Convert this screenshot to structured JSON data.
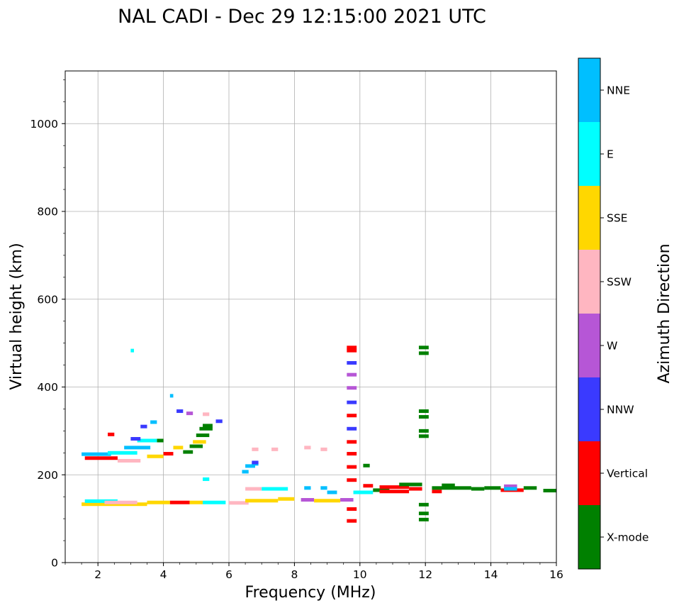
{
  "chart_data": {
    "type": "scatter",
    "title": "NAL CADI - Dec 29 12:15:00 2021 UTC",
    "xlabel": "Frequency (MHz)",
    "ylabel": "Virtual height (km)",
    "colorbar_label": "Azimuth Direction",
    "xlim": [
      1,
      16
    ],
    "ylim": [
      0,
      1120
    ],
    "x_ticks": [
      "2",
      "4",
      "6",
      "8",
      "10",
      "12",
      "14",
      "16"
    ],
    "y_ticks": [
      "0",
      "200",
      "400",
      "600",
      "800",
      "1000"
    ],
    "grid": true,
    "legend_position": "right-colorbar",
    "categories": [
      {
        "label": "X-mode",
        "color": "#008000"
      },
      {
        "label": "Vertical",
        "color": "#ff0000"
      },
      {
        "label": "NNW",
        "color": "#3a3aff"
      },
      {
        "label": "W",
        "color": "#b656d6"
      },
      {
        "label": "SSW",
        "color": "#ffb6c1"
      },
      {
        "label": "SSE",
        "color": "#ffd700"
      },
      {
        "label": "E",
        "color": "#00ffff"
      },
      {
        "label": "NNE",
        "color": "#00bfff"
      }
    ],
    "echo_segments": [
      {
        "f0": 1.5,
        "f1": 3.5,
        "h": 133,
        "dir": "SSE"
      },
      {
        "f0": 1.6,
        "f1": 2.6,
        "h": 140,
        "dir": "E"
      },
      {
        "f0": 2.2,
        "f1": 3.2,
        "h": 137,
        "dir": "SSW"
      },
      {
        "f0": 3.5,
        "f1": 4.2,
        "h": 137,
        "dir": "SSE"
      },
      {
        "f0": 4.2,
        "f1": 4.8,
        "h": 137,
        "dir": "Vertical"
      },
      {
        "f0": 4.8,
        "f1": 5.2,
        "h": 137,
        "dir": "SSE"
      },
      {
        "f0": 5.2,
        "f1": 5.9,
        "h": 137,
        "dir": "E"
      },
      {
        "f0": 6.0,
        "f1": 6.6,
        "h": 136,
        "dir": "SSW"
      },
      {
        "f0": 6.5,
        "f1": 7.5,
        "h": 141,
        "dir": "SSE"
      },
      {
        "f0": 7.5,
        "f1": 8.0,
        "h": 145,
        "dir": "SSE"
      },
      {
        "f0": 8.2,
        "f1": 8.6,
        "h": 143,
        "dir": "W"
      },
      {
        "f0": 8.6,
        "f1": 9.4,
        "h": 141,
        "dir": "SSE"
      },
      {
        "f0": 9.4,
        "f1": 9.8,
        "h": 143,
        "dir": "W"
      },
      {
        "f0": 6.5,
        "f1": 7.0,
        "h": 168,
        "dir": "SSW"
      },
      {
        "f0": 7.0,
        "f1": 7.8,
        "h": 168,
        "dir": "E"
      },
      {
        "f0": 8.3,
        "f1": 8.5,
        "h": 170,
        "dir": "NNE"
      },
      {
        "f0": 8.8,
        "f1": 9.0,
        "h": 170,
        "dir": "NNE"
      },
      {
        "f0": 9.0,
        "f1": 9.3,
        "h": 160,
        "dir": "NNE"
      },
      {
        "f0": 9.8,
        "f1": 10.4,
        "h": 160,
        "dir": "E"
      },
      {
        "f0": 10.4,
        "f1": 10.9,
        "h": 165,
        "dir": "X-mode"
      },
      {
        "f0": 10.1,
        "f1": 10.4,
        "h": 175,
        "dir": "Vertical"
      },
      {
        "f0": 10.6,
        "f1": 11.5,
        "h": 162,
        "dir": "Vertical"
      },
      {
        "f0": 10.6,
        "f1": 11.5,
        "h": 172,
        "dir": "Vertical"
      },
      {
        "f0": 11.5,
        "f1": 11.9,
        "h": 168,
        "dir": "Vertical"
      },
      {
        "f0": 11.2,
        "f1": 11.9,
        "h": 178,
        "dir": "X-mode"
      },
      {
        "f0": 12.2,
        "f1": 12.5,
        "h": 162,
        "dir": "Vertical"
      },
      {
        "f0": 12.2,
        "f1": 13.4,
        "h": 170,
        "dir": "X-mode"
      },
      {
        "f0": 12.5,
        "f1": 12.9,
        "h": 176,
        "dir": "X-mode"
      },
      {
        "f0": 13.4,
        "f1": 13.8,
        "h": 168,
        "dir": "X-mode"
      },
      {
        "f0": 13.8,
        "f1": 14.3,
        "h": 170,
        "dir": "X-mode"
      },
      {
        "f0": 14.3,
        "f1": 15.0,
        "h": 165,
        "dir": "Vertical"
      },
      {
        "f0": 14.4,
        "f1": 14.8,
        "h": 174,
        "dir": "W"
      },
      {
        "f0": 14.4,
        "f1": 14.8,
        "h": 168,
        "dir": "NNE"
      },
      {
        "f0": 15.0,
        "f1": 15.4,
        "h": 170,
        "dir": "X-mode"
      },
      {
        "f0": 15.6,
        "f1": 16.0,
        "h": 164,
        "dir": "X-mode"
      },
      {
        "f0": 10.1,
        "f1": 10.3,
        "h": 221,
        "dir": "X-mode"
      },
      {
        "f0": 6.4,
        "f1": 6.6,
        "h": 207,
        "dir": "NNE"
      },
      {
        "f0": 6.5,
        "f1": 6.8,
        "h": 220,
        "dir": "NNE"
      },
      {
        "f0": 6.7,
        "f1": 6.9,
        "h": 225,
        "dir": "NNE"
      },
      {
        "f0": 6.7,
        "f1": 6.9,
        "h": 228,
        "dir": "NNW"
      },
      {
        "f0": 6.7,
        "f1": 6.9,
        "h": 258,
        "dir": "SSW"
      },
      {
        "f0": 7.3,
        "f1": 7.5,
        "h": 258,
        "dir": "SSW"
      },
      {
        "f0": 8.3,
        "f1": 8.5,
        "h": 262,
        "dir": "SSW"
      },
      {
        "f0": 8.8,
        "f1": 9.0,
        "h": 258,
        "dir": "SSW"
      },
      {
        "f0": 5.2,
        "f1": 5.4,
        "h": 190,
        "dir": "E"
      },
      {
        "f0": 4.0,
        "f1": 4.3,
        "h": 248,
        "dir": "Vertical"
      },
      {
        "f0": 4.3,
        "f1": 4.6,
        "h": 262,
        "dir": "SSE"
      },
      {
        "f0": 4.6,
        "f1": 4.9,
        "h": 252,
        "dir": "X-mode"
      },
      {
        "f0": 4.8,
        "f1": 5.2,
        "h": 265,
        "dir": "X-mode"
      },
      {
        "f0": 4.9,
        "f1": 5.3,
        "h": 275,
        "dir": "SSE"
      },
      {
        "f0": 5.0,
        "f1": 5.4,
        "h": 290,
        "dir": "X-mode"
      },
      {
        "f0": 5.1,
        "f1": 5.5,
        "h": 305,
        "dir": "X-mode"
      },
      {
        "f0": 5.2,
        "f1": 5.5,
        "h": 312,
        "dir": "X-mode"
      },
      {
        "f0": 5.2,
        "f1": 5.4,
        "h": 338,
        "dir": "SSW"
      },
      {
        "f0": 5.6,
        "f1": 5.8,
        "h": 322,
        "dir": "NNW"
      },
      {
        "f0": 4.7,
        "f1": 4.9,
        "h": 340,
        "dir": "W"
      },
      {
        "f0": 4.4,
        "f1": 4.6,
        "h": 345,
        "dir": "NNW"
      },
      {
        "f0": 4.2,
        "f1": 4.3,
        "h": 380,
        "dir": "NNE"
      },
      {
        "f0": 3.8,
        "f1": 4.0,
        "h": 278,
        "dir": "X-mode"
      },
      {
        "f0": 1.5,
        "f1": 2.4,
        "h": 247,
        "dir": "NNE"
      },
      {
        "f0": 1.6,
        "f1": 2.6,
        "h": 238,
        "dir": "Vertical"
      },
      {
        "f0": 2.3,
        "f1": 3.2,
        "h": 250,
        "dir": "E"
      },
      {
        "f0": 2.8,
        "f1": 3.6,
        "h": 262,
        "dir": "NNE"
      },
      {
        "f0": 3.2,
        "f1": 3.8,
        "h": 278,
        "dir": "E"
      },
      {
        "f0": 2.6,
        "f1": 3.3,
        "h": 232,
        "dir": "SSW"
      },
      {
        "f0": 3.5,
        "f1": 4.0,
        "h": 242,
        "dir": "SSE"
      },
      {
        "f0": 3.0,
        "f1": 3.3,
        "h": 282,
        "dir": "NNW"
      },
      {
        "f0": 2.3,
        "f1": 2.5,
        "h": 292,
        "dir": "Vertical"
      },
      {
        "f0": 3.3,
        "f1": 3.5,
        "h": 310,
        "dir": "NNW"
      },
      {
        "f0": 3.6,
        "f1": 3.8,
        "h": 320,
        "dir": "NNE"
      },
      {
        "f0": 3.0,
        "f1": 3.1,
        "h": 483,
        "dir": "E"
      },
      {
        "f0": 9.6,
        "f1": 9.9,
        "h": 490,
        "dir": "Vertical"
      },
      {
        "f0": 9.6,
        "f1": 9.9,
        "h": 483,
        "dir": "Vertical"
      },
      {
        "f0": 9.6,
        "f1": 9.9,
        "h": 455,
        "dir": "NNW"
      },
      {
        "f0": 9.6,
        "f1": 9.9,
        "h": 428,
        "dir": "W"
      },
      {
        "f0": 9.6,
        "f1": 9.9,
        "h": 398,
        "dir": "W"
      },
      {
        "f0": 9.6,
        "f1": 9.9,
        "h": 365,
        "dir": "NNW"
      },
      {
        "f0": 9.6,
        "f1": 9.9,
        "h": 335,
        "dir": "Vertical"
      },
      {
        "f0": 9.6,
        "f1": 9.9,
        "h": 305,
        "dir": "NNW"
      },
      {
        "f0": 9.6,
        "f1": 9.9,
        "h": 275,
        "dir": "Vertical"
      },
      {
        "f0": 9.6,
        "f1": 9.9,
        "h": 248,
        "dir": "Vertical"
      },
      {
        "f0": 9.6,
        "f1": 9.9,
        "h": 218,
        "dir": "Vertical"
      },
      {
        "f0": 9.6,
        "f1": 9.9,
        "h": 188,
        "dir": "Vertical"
      },
      {
        "f0": 9.6,
        "f1": 9.9,
        "h": 122,
        "dir": "Vertical"
      },
      {
        "f0": 9.6,
        "f1": 9.9,
        "h": 95,
        "dir": "Vertical"
      },
      {
        "f0": 11.8,
        "f1": 12.1,
        "h": 490,
        "dir": "X-mode"
      },
      {
        "f0": 11.8,
        "f1": 12.1,
        "h": 477,
        "dir": "X-mode"
      },
      {
        "f0": 11.8,
        "f1": 12.1,
        "h": 345,
        "dir": "X-mode"
      },
      {
        "f0": 11.8,
        "f1": 12.1,
        "h": 332,
        "dir": "X-mode"
      },
      {
        "f0": 11.8,
        "f1": 12.1,
        "h": 300,
        "dir": "X-mode"
      },
      {
        "f0": 11.8,
        "f1": 12.1,
        "h": 288,
        "dir": "X-mode"
      },
      {
        "f0": 11.8,
        "f1": 12.1,
        "h": 132,
        "dir": "X-mode"
      },
      {
        "f0": 11.8,
        "f1": 12.1,
        "h": 112,
        "dir": "X-mode"
      },
      {
        "f0": 11.8,
        "f1": 12.1,
        "h": 98,
        "dir": "X-mode"
      }
    ]
  }
}
